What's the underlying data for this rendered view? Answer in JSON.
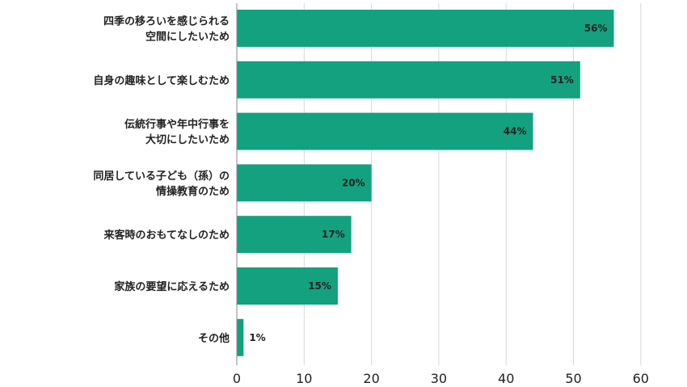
{
  "chart_data": {
    "type": "bar",
    "orientation": "horizontal",
    "categories": [
      [
        "四季の移ろいを感じられる",
        "空間にしたいため"
      ],
      [
        "自身の趣味として楽しむため"
      ],
      [
        "伝統行事や年中行事を",
        "大切にしたいため"
      ],
      [
        "同居している子ども（孫）の",
        "情操教育のため"
      ],
      [
        "来客時のおもてなしのため"
      ],
      [
        "家族の要望に応えるため"
      ],
      [
        "その他"
      ]
    ],
    "values": [
      56,
      51,
      44,
      20,
      17,
      15,
      1
    ],
    "value_labels": [
      "56%",
      "51%",
      "44%",
      "20%",
      "17%",
      "15%",
      "1%"
    ],
    "xlim": [
      0,
      60
    ],
    "xticks": [
      "0",
      "10",
      "20",
      "30",
      "40",
      "50",
      "60"
    ],
    "title": "",
    "xlabel": "",
    "ylabel": "",
    "grid": "vertical",
    "bar_color": "#13a17f"
  }
}
